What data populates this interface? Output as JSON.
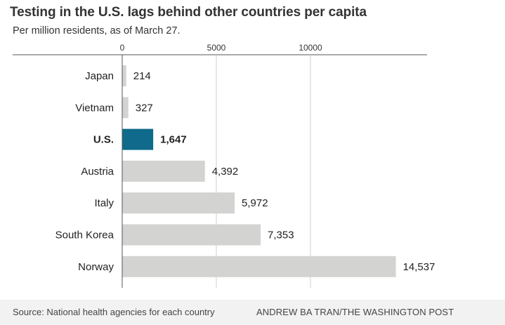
{
  "title": "Testing in the U.S. lags behind other countries per capita",
  "subtitle": "Per million residents, as of March 27.",
  "colors": {
    "bar": "#d3d3d1",
    "highlight": "#0f6a8b",
    "grid": "#cfcfcf"
  },
  "chart_data": {
    "type": "bar",
    "orientation": "horizontal",
    "title": "Testing in the U.S. lags behind other countries per capita",
    "subtitle": "Per million residents, as of March 27.",
    "xlabel": "",
    "ylabel": "",
    "xlim": [
      0,
      15000
    ],
    "ticks": [
      0,
      5000,
      10000
    ],
    "tick_labels": [
      "0",
      "5000",
      "10000"
    ],
    "grid": true,
    "categories": [
      "Japan",
      "Vietnam",
      "U.S.",
      "Austria",
      "Italy",
      "South Korea",
      "Norway"
    ],
    "values": [
      214,
      327,
      1647,
      4392,
      5972,
      7353,
      14537
    ],
    "value_labels": [
      "214",
      "327",
      "1,647",
      "4,392",
      "5,972",
      "7,353",
      "14,537"
    ],
    "highlight": "U.S."
  },
  "source": "Source: National health agencies for each country",
  "credit": "ANDREW BA TRAN/THE WASHINGTON POST"
}
